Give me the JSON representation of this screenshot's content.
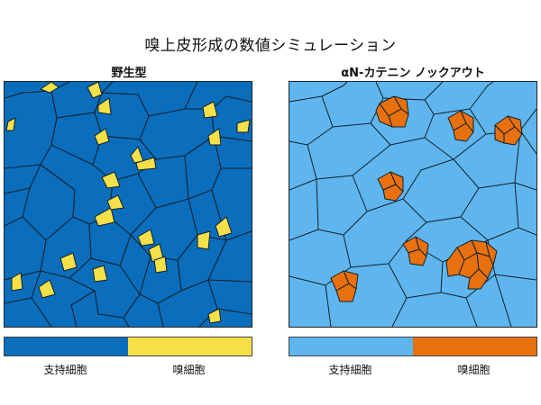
{
  "title": "嗅上皮形成の数値シミュレーション",
  "panels": {
    "left": {
      "title": "野生型"
    },
    "right": {
      "title": "αN-カテニン ノックアウト"
    }
  },
  "legend": {
    "supporting_label": "支持細胞",
    "olfactory_label": "嗅細胞"
  },
  "colors": {
    "wt_support": "#0a6ebd",
    "wt_olfactory": "#f5e04a",
    "ko_support": "#5fb6ee",
    "ko_olfactory": "#e8700e",
    "edge": "#10202a"
  }
}
